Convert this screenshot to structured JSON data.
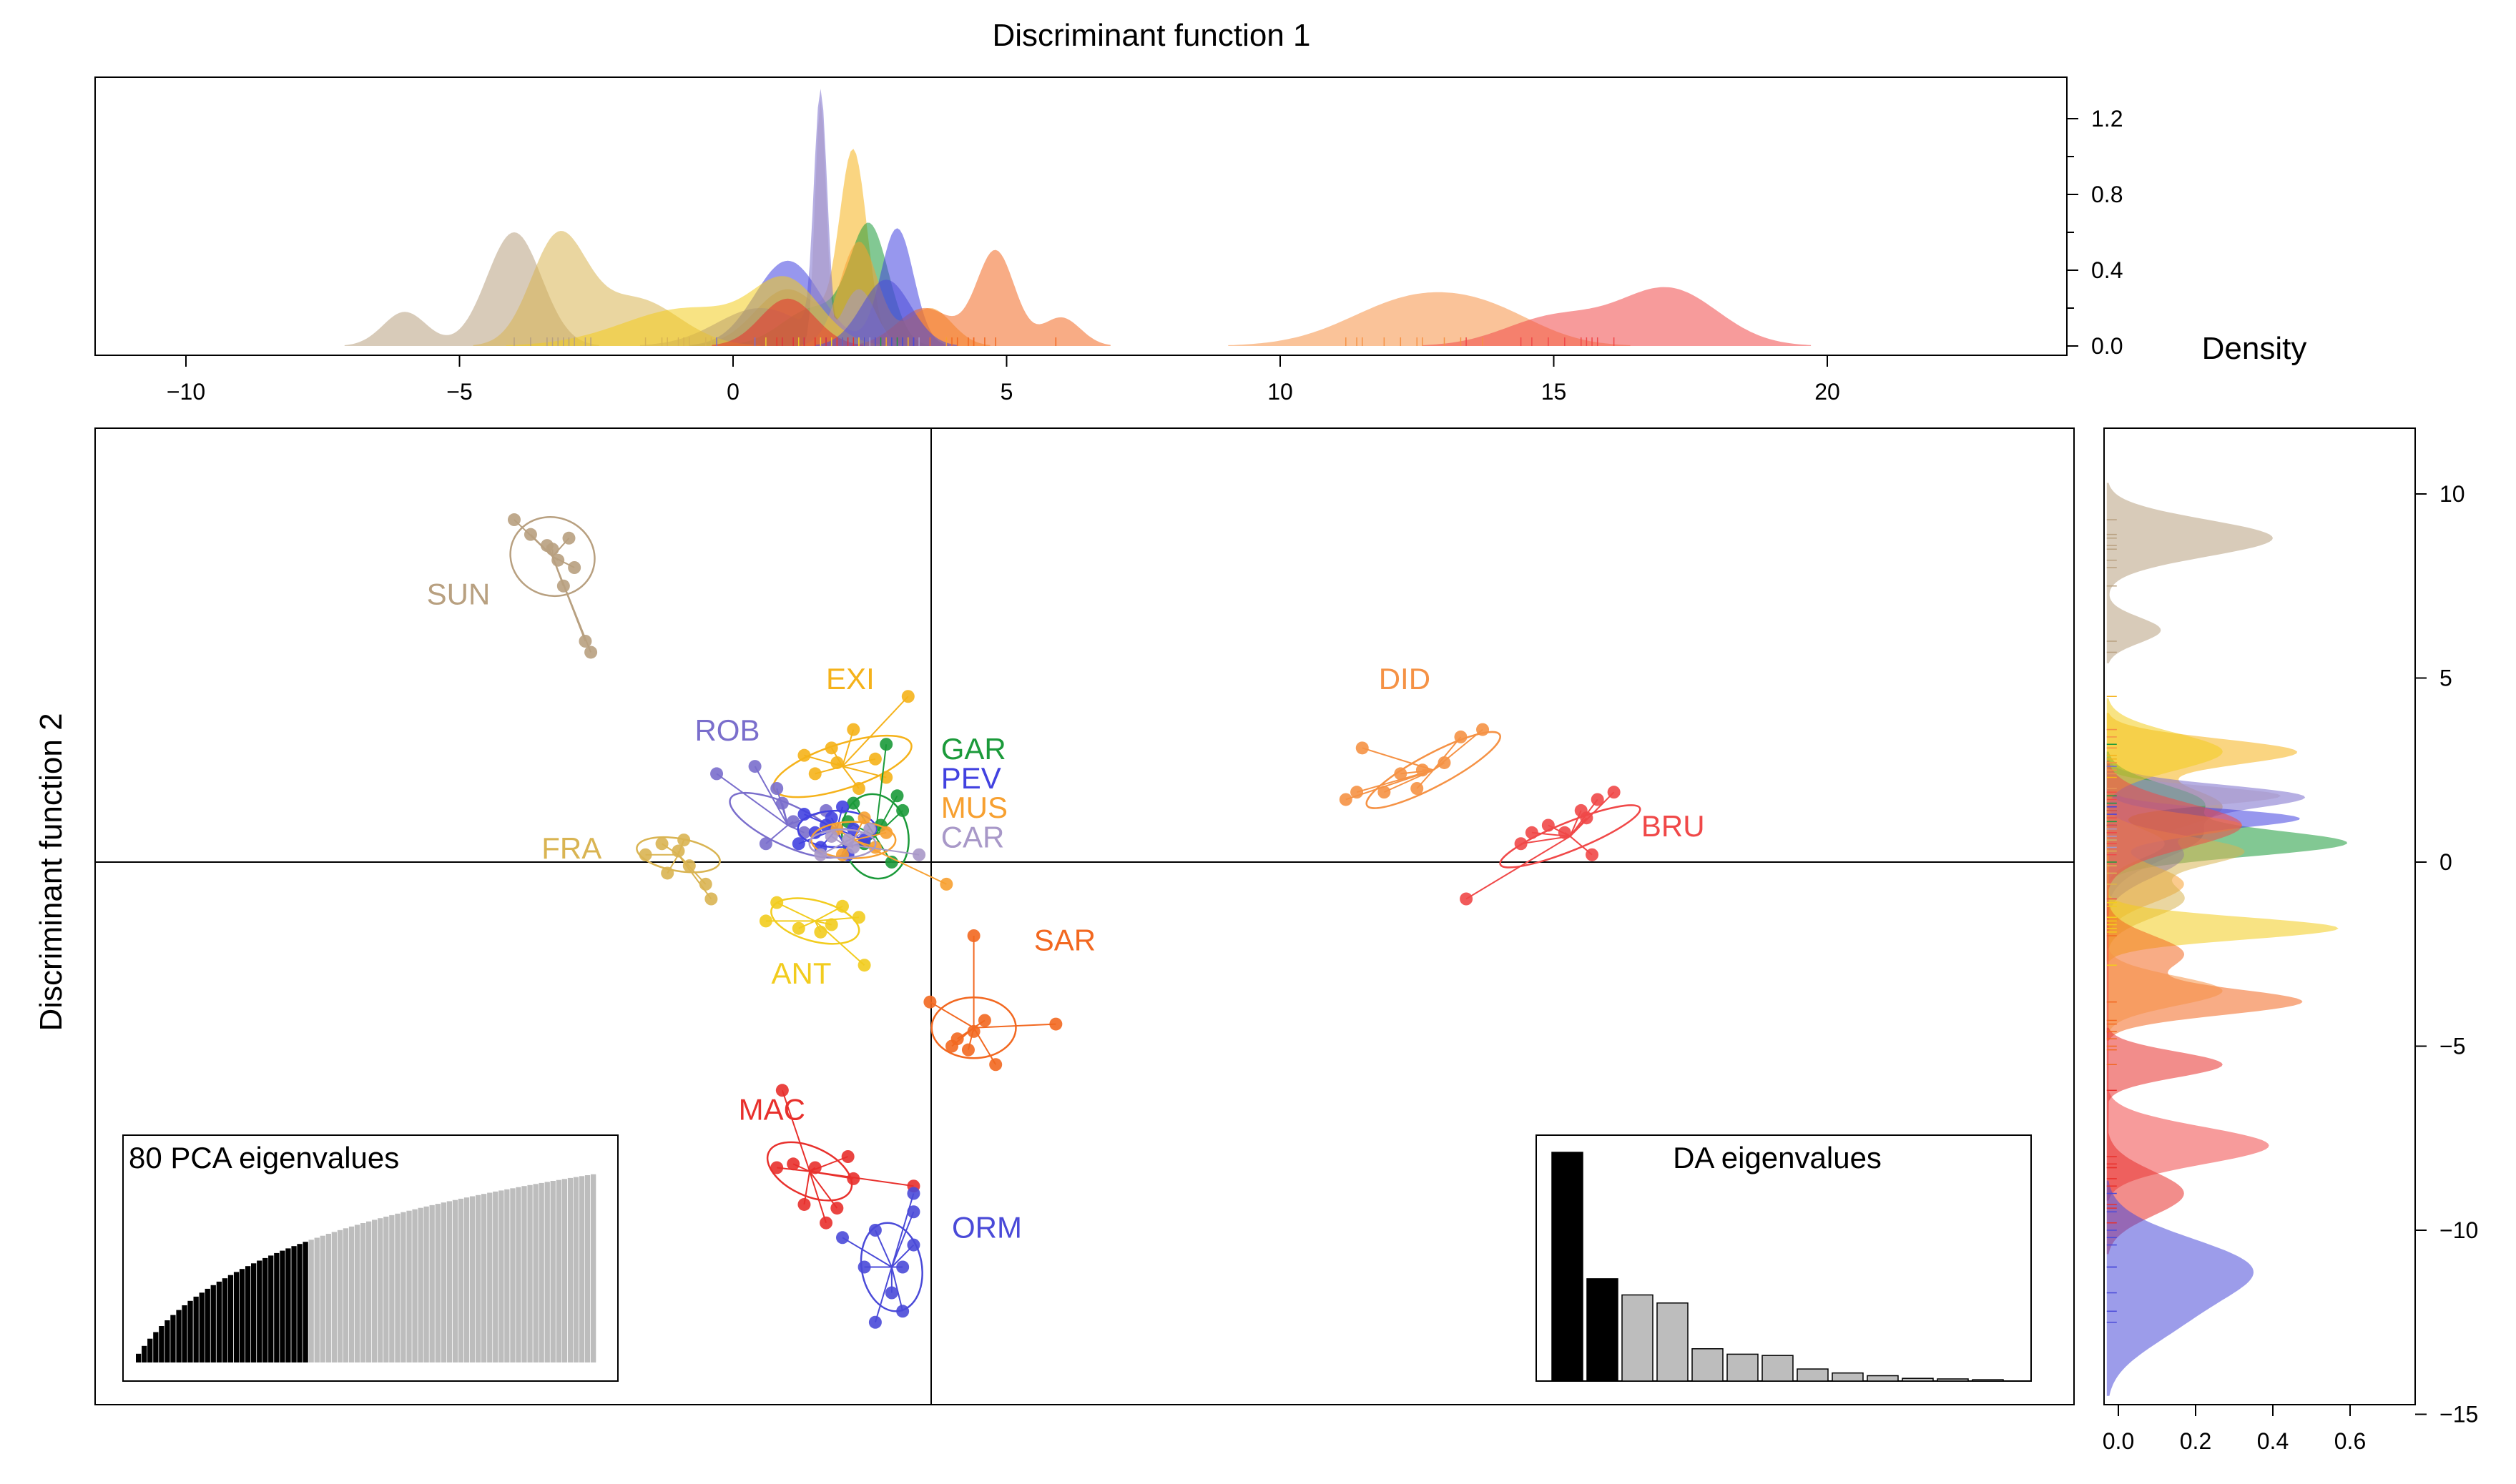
{
  "chart_data": {
    "type": "scatter",
    "title": "",
    "xlabel": "Discriminant function 1",
    "ylabel": "Discriminant function 2",
    "axes": {
      "x_ticks": [
        -10,
        -5,
        0,
        5,
        10,
        15,
        20
      ],
      "x_tick_labels": [
        "−10",
        "−5",
        "0",
        "5",
        "10",
        "15",
        "20"
      ],
      "x_range": [
        -12,
        24
      ],
      "y_range": [
        -15.5,
        11.2
      ],
      "y_ticks": [
        10,
        5,
        0,
        -5,
        -10,
        -15
      ],
      "y_tick_labels": [
        "10",
        "5",
        "0",
        "−5",
        "−10",
        "−15"
      ],
      "zero_lines": true
    },
    "density_top": {
      "ylabel": "",
      "y_ticks": [
        0.0,
        0.4,
        0.8,
        1.2
      ],
      "y_tick_labels": [
        "0.0",
        "0.4",
        "0.8",
        "1.2"
      ],
      "y_max": 1.34
    },
    "density_right": {
      "xlabel": "Density",
      "x_ticks": [
        0.0,
        0.2,
        0.4,
        0.6
      ],
      "x_tick_labels": [
        "0.0",
        "0.2",
        "0.4",
        "0.6"
      ],
      "x_range": [
        -0.2,
        0.6
      ]
    },
    "groups": [
      {
        "name": "SUN",
        "color": "#b8a080",
        "centroid": [
          -3.3,
          8.3
        ],
        "ellipse_r": [
          1.3,
          2.1
        ],
        "angle": 70,
        "peaks_x": [
          [
            -6.0,
            0.18,
            0.4
          ],
          [
            -4.0,
            0.6,
            0.5
          ]
        ],
        "peaks_y": [
          [
            8.8,
            0.43,
            0.5
          ],
          [
            6.3,
            0.14,
            0.35
          ]
        ],
        "points": [
          [
            -4.0,
            9.3
          ],
          [
            -3.7,
            8.9
          ],
          [
            -3.4,
            8.6
          ],
          [
            -3.0,
            8.8
          ],
          [
            -3.2,
            8.2
          ],
          [
            -2.9,
            8.0
          ],
          [
            -3.1,
            7.5
          ],
          [
            -2.7,
            6.0
          ],
          [
            -2.6,
            5.7
          ],
          [
            -3.3,
            8.5
          ]
        ],
        "label": "SUN",
        "label_pos": [
          -5.6,
          7.0
        ]
      },
      {
        "name": "EXI",
        "color": "#f5b21a",
        "centroid": [
          2.0,
          2.6
        ],
        "ellipse_r": [
          2.4,
          1.1
        ],
        "angle": 18,
        "peaks_x": [
          [
            2.2,
            1.0,
            0.25
          ],
          [
            1.0,
            0.3,
            0.6
          ]
        ],
        "peaks_y": [
          [
            3.0,
            0.48,
            0.35
          ],
          [
            1.5,
            0.3,
            0.6
          ]
        ],
        "points": [
          [
            1.3,
            2.9
          ],
          [
            1.8,
            3.1
          ],
          [
            2.2,
            3.6
          ],
          [
            3.2,
            4.5
          ],
          [
            2.6,
            2.8
          ],
          [
            1.5,
            2.4
          ],
          [
            2.3,
            2.0
          ],
          [
            2.8,
            2.3
          ],
          [
            1.9,
            2.7
          ]
        ],
        "label": "EXI",
        "label_pos": [
          1.7,
          4.7
        ]
      },
      {
        "name": "ROB",
        "color": "#7a6ecc",
        "centroid": [
          1.0,
          1.0
        ],
        "ellipse_r": [
          2.1,
          1.0
        ],
        "angle": -25,
        "peaks_x": [
          [
            1.6,
            1.28,
            0.12
          ],
          [
            0.5,
            0.2,
            0.8
          ]
        ],
        "peaks_y": [
          [
            1.8,
            0.42,
            0.3
          ],
          [
            0.8,
            0.25,
            0.7
          ]
        ],
        "points": [
          [
            -0.3,
            2.4
          ],
          [
            0.4,
            2.6
          ],
          [
            0.8,
            2.0
          ],
          [
            1.1,
            1.1
          ],
          [
            0.6,
            0.5
          ],
          [
            1.3,
            0.8
          ],
          [
            1.7,
            1.4
          ],
          [
            0.9,
            1.6
          ]
        ],
        "label": "ROB",
        "label_pos": [
          -0.7,
          3.3
        ]
      },
      {
        "name": "GAR",
        "color": "#1b9a3a",
        "centroid": [
          2.6,
          0.7
        ],
        "ellipse_r": [
          1.1,
          2.1
        ],
        "angle": 10,
        "peaks_x": [
          [
            2.5,
            0.6,
            0.35
          ],
          [
            1.5,
            0.2,
            0.6
          ]
        ],
        "peaks_y": [
          [
            0.5,
            0.6,
            0.35
          ],
          [
            1.6,
            0.25,
            0.5
          ]
        ],
        "points": [
          [
            2.8,
            3.2
          ],
          [
            3.0,
            1.8
          ],
          [
            2.7,
            1.0
          ],
          [
            2.4,
            0.5
          ],
          [
            2.1,
            1.1
          ],
          [
            2.9,
            0.0
          ],
          [
            3.1,
            1.4
          ],
          [
            2.2,
            1.6
          ]
        ],
        "label": "GAR",
        "label_pos": [
          3.8,
          2.8
        ]
      },
      {
        "name": "PEV",
        "color": "#4242e0",
        "centroid": [
          1.9,
          0.9
        ],
        "ellipse_r": [
          1.3,
          0.9
        ],
        "angle": 0,
        "peaks_x": [
          [
            3.0,
            0.62,
            0.3
          ],
          [
            1.0,
            0.45,
            0.6
          ]
        ],
        "peaks_y": [
          [
            1.2,
            0.45,
            0.25
          ],
          [
            0.2,
            0.2,
            0.6
          ]
        ],
        "points": [
          [
            1.3,
            1.3
          ],
          [
            1.5,
            0.8
          ],
          [
            1.8,
            1.2
          ],
          [
            2.2,
            0.9
          ],
          [
            1.6,
            0.4
          ],
          [
            2.0,
            1.5
          ],
          [
            2.4,
            0.6
          ],
          [
            1.2,
            0.5
          ],
          [
            2.1,
            0.2
          ],
          [
            1.7,
            1.0
          ]
        ],
        "label": "PEV",
        "label_pos": [
          3.8,
          2.0
        ]
      },
      {
        "name": "MUS",
        "color": "#f7a030",
        "centroid": [
          2.2,
          0.6
        ],
        "ellipse_r": [
          1.4,
          0.9
        ],
        "angle": 0,
        "peaks_x": [
          [
            2.3,
            0.55,
            0.35
          ],
          [
            3.6,
            0.2,
            0.4
          ]
        ],
        "peaks_y": [
          [
            1.0,
            0.35,
            0.3
          ],
          [
            -0.6,
            0.2,
            0.5
          ]
        ],
        "points": [
          [
            1.9,
            0.9
          ],
          [
            2.4,
            1.2
          ],
          [
            2.6,
            0.4
          ],
          [
            3.9,
            -0.6
          ],
          [
            2.0,
            0.2
          ],
          [
            2.8,
            0.8
          ]
        ],
        "label": "MUS",
        "label_pos": [
          3.8,
          1.2
        ]
      },
      {
        "name": "CAR",
        "color": "#a898c8",
        "centroid": [
          2.0,
          0.5
        ],
        "ellipse_r": [
          1.1,
          0.7
        ],
        "angle": 0,
        "peaks_x": [
          [
            1.6,
            1.28,
            0.1
          ],
          [
            2.3,
            0.3,
            0.3
          ]
        ],
        "peaks_y": [
          [
            1.8,
            0.45,
            0.25
          ],
          [
            0.5,
            0.15,
            0.4
          ]
        ],
        "points": [
          [
            1.8,
            0.7
          ],
          [
            2.2,
            0.4
          ],
          [
            3.4,
            0.2
          ],
          [
            2.5,
            0.9
          ],
          [
            1.6,
            0.2
          ],
          [
            2.1,
            0.6
          ]
        ],
        "label": "CAR",
        "label_pos": [
          3.8,
          0.4
        ]
      },
      {
        "name": "FRA",
        "color": "#d9b452",
        "centroid": [
          -1.0,
          0.2
        ],
        "ellipse_r": [
          1.4,
          0.8
        ],
        "angle": -10,
        "peaks_x": [
          [
            -3.2,
            0.55,
            0.5
          ],
          [
            -1.8,
            0.25,
            0.8
          ]
        ],
        "peaks_y": [
          [
            0.3,
            0.35,
            0.4
          ],
          [
            -1.0,
            0.2,
            0.5
          ]
        ],
        "points": [
          [
            -1.6,
            0.2
          ],
          [
            -1.3,
            0.5
          ],
          [
            -1.0,
            0.3
          ],
          [
            -0.8,
            -0.1
          ],
          [
            -0.5,
            -0.6
          ],
          [
            -1.2,
            -0.3
          ],
          [
            -0.9,
            0.6
          ],
          [
            -0.4,
            -1.0
          ]
        ],
        "label": "FRA",
        "label_pos": [
          -3.5,
          0.1
        ]
      },
      {
        "name": "ANT",
        "color": "#f2cc1e",
        "centroid": [
          1.5,
          -1.6
        ],
        "ellipse_r": [
          1.5,
          1.0
        ],
        "angle": -15,
        "peaks_x": [
          [
            1.0,
            0.3,
            0.6
          ],
          [
            -0.8,
            0.2,
            1.2
          ]
        ],
        "peaks_y": [
          [
            -1.8,
            0.6,
            0.3
          ],
          [
            3.0,
            0.3,
            0.5
          ]
        ],
        "points": [
          [
            0.8,
            -1.1
          ],
          [
            1.2,
            -1.8
          ],
          [
            1.6,
            -1.9
          ],
          [
            2.0,
            -1.2
          ],
          [
            2.3,
            -1.5
          ],
          [
            1.8,
            -1.7
          ],
          [
            2.4,
            -2.8
          ],
          [
            0.6,
            -1.6
          ]
        ],
        "label": "ANT",
        "label_pos": [
          0.7,
          -3.3
        ]
      },
      {
        "name": "SAR",
        "color": "#f26820",
        "centroid": [
          4.4,
          -4.5
        ],
        "ellipse_r": [
          1.4,
          1.5
        ],
        "angle": 0,
        "peaks_x": [
          [
            4.8,
            0.5,
            0.35
          ],
          [
            3.5,
            0.2,
            0.5
          ],
          [
            6.0,
            0.15,
            0.35
          ]
        ],
        "peaks_y": [
          [
            -3.8,
            0.5,
            0.35
          ],
          [
            -2.5,
            0.2,
            0.5
          ]
        ],
        "points": [
          [
            4.4,
            -2.0
          ],
          [
            5.9,
            -4.4
          ],
          [
            3.6,
            -3.8
          ],
          [
            4.0,
            -5.0
          ],
          [
            4.3,
            -5.1
          ],
          [
            4.8,
            -5.5
          ],
          [
            4.4,
            -4.6
          ],
          [
            4.1,
            -4.8
          ],
          [
            4.6,
            -4.3
          ]
        ],
        "label": "SAR",
        "label_pos": [
          5.5,
          -2.4
        ]
      },
      {
        "name": "DID",
        "color": "#f59245",
        "centroid": [
          12.8,
          2.5
        ],
        "ellipse_r": [
          2.5,
          0.8
        ],
        "angle": 28,
        "peaks_x": [
          [
            12.5,
            0.25,
            1.2
          ],
          [
            14.0,
            0.1,
            0.9
          ]
        ],
        "peaks_y": [
          [
            -3.5,
            0.3,
            0.4
          ]
        ],
        "points": [
          [
            11.2,
            1.7
          ],
          [
            11.4,
            1.9
          ],
          [
            11.9,
            1.9
          ],
          [
            12.2,
            2.4
          ],
          [
            12.6,
            2.5
          ],
          [
            12.5,
            2.0
          ],
          [
            13.0,
            2.7
          ],
          [
            13.3,
            3.4
          ],
          [
            13.7,
            3.6
          ],
          [
            11.5,
            3.1
          ]
        ],
        "label": "DID",
        "label_pos": [
          11.8,
          4.7
        ]
      },
      {
        "name": "BRU",
        "color": "#f04848",
        "centroid": [
          15.3,
          0.7
        ],
        "ellipse_r": [
          2.5,
          0.7
        ],
        "angle": 22,
        "peaks_x": [
          [
            17.1,
            0.3,
            0.9
          ],
          [
            15.0,
            0.15,
            0.9
          ]
        ],
        "peaks_y": [
          [
            -7.7,
            0.42,
            0.5
          ],
          [
            1.0,
            0.35,
            0.6
          ]
        ],
        "points": [
          [
            13.4,
            -1.0
          ],
          [
            14.4,
            0.5
          ],
          [
            14.9,
            1.0
          ],
          [
            15.2,
            0.8
          ],
          [
            15.6,
            1.2
          ],
          [
            15.8,
            1.7
          ],
          [
            16.1,
            1.9
          ],
          [
            15.7,
            0.2
          ],
          [
            14.6,
            0.8
          ],
          [
            15.5,
            1.4
          ]
        ],
        "label": "BRU",
        "label_pos": [
          16.6,
          0.7
        ]
      },
      {
        "name": "MAC",
        "color": "#e8302c",
        "centroid": [
          1.4,
          -8.4
        ],
        "ellipse_r": [
          1.5,
          1.2
        ],
        "angle": -25,
        "peaks_x": [
          [
            1.0,
            0.25,
            0.5
          ]
        ],
        "peaks_y": [
          [
            -5.5,
            0.3,
            0.35
          ],
          [
            -9.0,
            0.2,
            0.6
          ]
        ],
        "points": [
          [
            0.9,
            -6.2
          ],
          [
            1.1,
            -8.2
          ],
          [
            1.5,
            -8.3
          ],
          [
            2.1,
            -8.0
          ],
          [
            2.2,
            -8.6
          ],
          [
            3.3,
            -8.8
          ],
          [
            1.3,
            -9.3
          ],
          [
            1.7,
            -9.8
          ],
          [
            1.9,
            -9.4
          ],
          [
            0.8,
            -8.3
          ]
        ],
        "label": "MAC",
        "label_pos": [
          0.1,
          -7.0
        ]
      },
      {
        "name": "ORM",
        "color": "#4a4ad8",
        "centroid": [
          2.9,
          -11.0
        ],
        "ellipse_r": [
          1.0,
          2.2
        ],
        "angle": 10,
        "peaks_x": [
          [
            2.8,
            0.35,
            0.45
          ]
        ],
        "peaks_y": [
          [
            -11.0,
            0.35,
            0.8
          ],
          [
            -12.5,
            0.15,
            0.8
          ]
        ],
        "points": [
          [
            3.3,
            -9.0
          ],
          [
            3.3,
            -9.5
          ],
          [
            2.6,
            -10.0
          ],
          [
            2.0,
            -10.2
          ],
          [
            2.4,
            -11.0
          ],
          [
            3.1,
            -11.0
          ],
          [
            2.9,
            -11.7
          ],
          [
            3.1,
            -12.2
          ],
          [
            2.6,
            -12.5
          ],
          [
            3.3,
            -10.4
          ]
        ],
        "label": "ORM",
        "label_pos": [
          4.0,
          -10.2
        ]
      }
    ],
    "inset_pca": {
      "title": "80 PCA eigenvalues",
      "n": 80,
      "retained": 30
    },
    "inset_da": {
      "title": "DA eigenvalues",
      "values": [
        8.5,
        3.8,
        3.2,
        2.9,
        1.2,
        1.0,
        0.95,
        0.45,
        0.3,
        0.2,
        0.1,
        0.08,
        0.05
      ],
      "retained": 2
    }
  }
}
